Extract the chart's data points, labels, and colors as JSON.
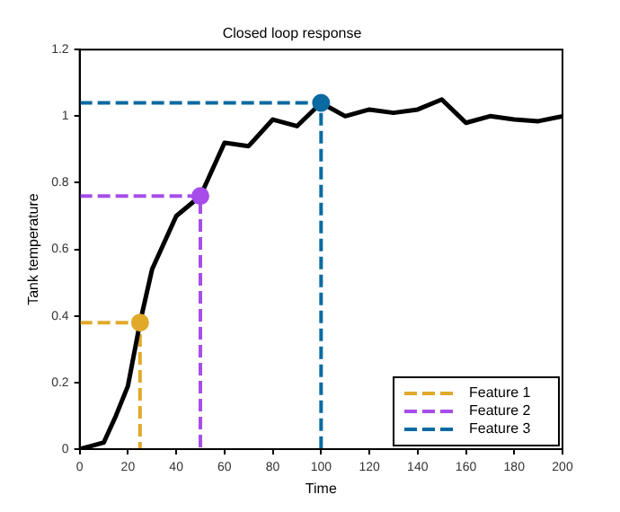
{
  "chart_data": {
    "type": "line",
    "title": "Closed loop response",
    "xlabel": "Time",
    "ylabel": "Tank temperature",
    "xlim": [
      0,
      200
    ],
    "xticks": [
      0,
      20,
      40,
      60,
      80,
      100,
      120,
      140,
      160,
      180,
      200
    ],
    "ylim": [
      0,
      1.2
    ],
    "yticks": [
      0,
      0.2,
      0.4,
      0.6,
      0.8,
      1,
      1.2
    ],
    "grid": false,
    "legend": "bottom right",
    "marker": "none",
    "series": [
      {
        "color": "#000000",
        "x": [
          0,
          5,
          10,
          15,
          20,
          25,
          30,
          40,
          50,
          60,
          70,
          80,
          90,
          100,
          110,
          120,
          130,
          140,
          150,
          160,
          170,
          180,
          190,
          200
        ],
        "values": [
          0,
          0.01,
          0.02,
          0.1,
          0.19,
          0.38,
          0.54,
          0.7,
          0.76,
          0.92,
          0.91,
          0.99,
          0.97,
          1.04,
          1.0,
          1.02,
          1.01,
          1.02,
          1.05,
          0.98,
          1.0,
          0.99,
          0.985,
          1.0
        ],
        "line_style": "solid"
      },
      {
        "name": "Feature 1",
        "color": "#e0a92a",
        "x": [
          0,
          25,
          25
        ],
        "values": [
          0.38,
          0.38,
          0
        ],
        "line_style": "dashed"
      },
      {
        "name": "Feature 2",
        "color": "#a64dea",
        "x": [
          0,
          50,
          50
        ],
        "values": [
          0.76,
          0.76,
          0
        ],
        "line_style": "dashed"
      },
      {
        "name": "Feature 3",
        "color": "#0a6aa1",
        "x": [
          0,
          100,
          100
        ],
        "values": [
          1.04,
          1.04,
          0
        ],
        "line_style": "dashed"
      },
      {
        "type": "scatter",
        "color": "#e0a92a",
        "x": [
          25
        ],
        "values": [
          0.38
        ],
        "marker": "circle"
      },
      {
        "type": "scatter",
        "color": "#a64dea",
        "x": [
          50
        ],
        "values": [
          0.76
        ],
        "marker": "circle"
      },
      {
        "type": "scatter",
        "color": "#0a6aa1",
        "x": [
          100
        ],
        "values": [
          1.04
        ],
        "marker": "circle"
      }
    ]
  }
}
